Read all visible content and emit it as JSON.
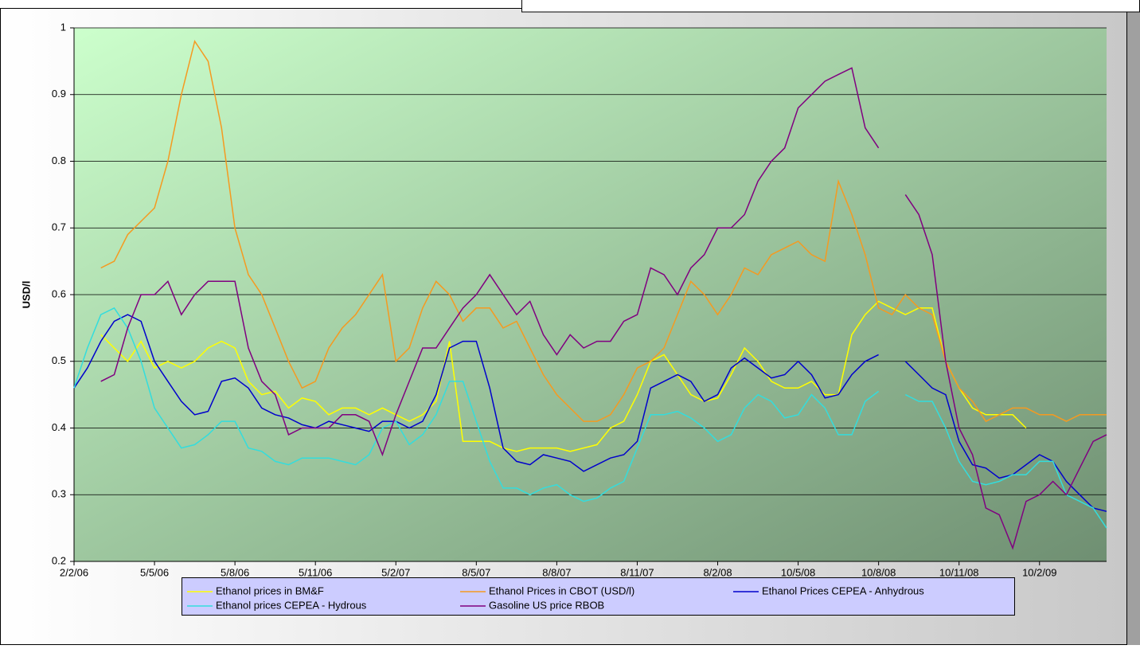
{
  "chart_data": {
    "type": "line",
    "y_label": "USD/l",
    "categories": [
      "2/2/06",
      null,
      null,
      null,
      null,
      null,
      "5/5/06",
      null,
      null,
      null,
      null,
      null,
      "5/8/06",
      null,
      null,
      null,
      null,
      null,
      "5/11/06",
      null,
      null,
      null,
      null,
      null,
      "5/2/07",
      null,
      null,
      null,
      null,
      null,
      "8/5/07",
      null,
      null,
      null,
      null,
      null,
      "8/8/07",
      null,
      null,
      null,
      null,
      null,
      "8/11/07",
      null,
      null,
      null,
      null,
      null,
      "8/2/08",
      null,
      null,
      null,
      null,
      null,
      "10/5/08",
      null,
      null,
      null,
      null,
      null,
      "10/8/08",
      null,
      null,
      null,
      null,
      null,
      "10/11/08",
      null,
      null,
      null,
      null,
      null,
      "10/2/09",
      null,
      null,
      null,
      null,
      null
    ],
    "ylim": [
      0.2,
      1
    ],
    "yticks": [
      0.2,
      0.3,
      0.4,
      0.5,
      0.6,
      0.7,
      0.8,
      0.9,
      1
    ],
    "grid": true,
    "legend": "bottom",
    "series": [
      {
        "name": "Ethanol prices in BM&F",
        "color": "#ffff00",
        "values": [
          null,
          null,
          0.54,
          0.52,
          0.5,
          0.53,
          0.49,
          0.5,
          0.49,
          0.5,
          0.52,
          0.53,
          0.52,
          0.47,
          0.45,
          0.455,
          0.43,
          0.445,
          0.44,
          0.42,
          0.43,
          0.43,
          0.42,
          0.43,
          0.42,
          0.41,
          0.42,
          0.44,
          0.53,
          0.38,
          0.38,
          0.38,
          0.37,
          0.365,
          0.37,
          0.37,
          0.37,
          0.365,
          0.37,
          0.375,
          0.4,
          0.41,
          0.45,
          0.5,
          0.51,
          0.48,
          0.45,
          0.44,
          0.445,
          0.48,
          0.52,
          0.5,
          0.47,
          0.46,
          0.46,
          0.47,
          0.45,
          0.45,
          0.54,
          0.57,
          0.59,
          0.58,
          0.57,
          0.58,
          0.58,
          0.5,
          0.46,
          0.43,
          0.42,
          0.42,
          0.42,
          0.4,
          null,
          null,
          null,
          null,
          null,
          null
        ]
      },
      {
        "name": "Ethanol Prices in CBOT (USD/l)",
        "color": "#f59a20",
        "values": [
          null,
          null,
          0.64,
          0.65,
          0.69,
          0.71,
          0.73,
          0.8,
          0.9,
          0.98,
          0.95,
          0.85,
          0.7,
          0.63,
          0.6,
          0.55,
          0.5,
          0.46,
          0.47,
          0.52,
          0.55,
          0.57,
          0.6,
          0.63,
          0.5,
          0.52,
          0.58,
          0.62,
          0.6,
          0.56,
          0.58,
          0.58,
          0.55,
          0.56,
          0.52,
          0.48,
          0.45,
          0.43,
          0.41,
          0.41,
          0.42,
          0.45,
          0.49,
          0.5,
          0.52,
          0.57,
          0.62,
          0.6,
          0.57,
          0.6,
          0.64,
          0.63,
          0.66,
          0.67,
          0.68,
          0.66,
          0.65,
          0.77,
          0.72,
          0.66,
          0.58,
          0.57,
          0.6,
          0.58,
          0.57,
          0.5,
          0.46,
          0.44,
          0.41,
          0.42,
          0.43,
          0.43,
          0.42,
          0.42,
          0.41,
          0.42,
          0.42,
          0.42
        ]
      },
      {
        "name": "Ethanol Prices CEPEA - Anhydrous",
        "color": "#0000cc",
        "values": [
          0.46,
          0.49,
          0.53,
          0.56,
          0.57,
          0.56,
          0.5,
          0.47,
          0.44,
          0.42,
          0.425,
          0.47,
          0.475,
          0.46,
          0.43,
          0.42,
          0.415,
          0.405,
          0.4,
          0.41,
          0.405,
          0.4,
          0.395,
          0.41,
          0.41,
          0.4,
          0.41,
          0.45,
          0.52,
          0.53,
          0.53,
          0.46,
          0.37,
          0.35,
          0.345,
          0.36,
          0.355,
          0.35,
          0.335,
          0.345,
          0.355,
          0.36,
          0.38,
          0.46,
          0.47,
          0.48,
          0.47,
          0.44,
          0.45,
          0.49,
          0.505,
          0.49,
          0.475,
          0.48,
          0.5,
          0.48,
          0.445,
          0.45,
          0.48,
          0.5,
          0.51,
          null,
          0.5,
          0.48,
          0.46,
          0.45,
          0.38,
          0.345,
          0.34,
          0.325,
          0.33,
          0.345,
          0.36,
          0.35,
          0.32,
          0.3,
          0.28,
          0.275
        ]
      },
      {
        "name": "Ethanol prices CEPEA - Hydrous",
        "color": "#33dddd",
        "values": [
          0.46,
          0.52,
          0.57,
          0.58,
          0.55,
          0.5,
          0.43,
          0.4,
          0.37,
          0.375,
          0.39,
          0.41,
          0.41,
          0.37,
          0.365,
          0.35,
          0.345,
          0.355,
          0.355,
          0.355,
          0.35,
          0.345,
          0.36,
          0.4,
          0.41,
          0.375,
          0.39,
          0.42,
          0.47,
          0.47,
          0.41,
          0.35,
          0.31,
          0.31,
          0.3,
          0.31,
          0.315,
          0.3,
          0.29,
          0.295,
          0.31,
          0.32,
          0.37,
          0.42,
          0.42,
          0.425,
          0.415,
          0.4,
          0.38,
          0.39,
          0.43,
          0.45,
          0.44,
          0.415,
          0.42,
          0.45,
          0.43,
          0.39,
          0.39,
          0.44,
          0.455,
          null,
          0.45,
          0.44,
          0.44,
          0.4,
          0.35,
          0.32,
          0.315,
          0.32,
          0.33,
          0.33,
          0.35,
          0.35,
          0.3,
          0.29,
          0.28,
          0.25
        ]
      },
      {
        "name": "Gasoline US price RBOB",
        "color": "#800080",
        "values": [
          null,
          null,
          0.47,
          0.48,
          0.55,
          0.6,
          0.6,
          0.62,
          0.57,
          0.6,
          0.62,
          0.62,
          0.62,
          0.52,
          0.47,
          0.45,
          0.39,
          0.4,
          0.4,
          0.4,
          0.42,
          0.42,
          0.41,
          0.36,
          0.42,
          0.47,
          0.52,
          0.52,
          0.55,
          0.58,
          0.6,
          0.63,
          0.6,
          0.57,
          0.59,
          0.54,
          0.51,
          0.54,
          0.52,
          0.53,
          0.53,
          0.56,
          0.57,
          0.64,
          0.63,
          0.6,
          0.64,
          0.66,
          0.7,
          0.7,
          0.72,
          0.77,
          0.8,
          0.82,
          0.88,
          0.9,
          0.92,
          0.93,
          0.94,
          0.85,
          0.82,
          null,
          0.75,
          0.72,
          0.66,
          0.5,
          0.4,
          0.36,
          0.28,
          0.27,
          0.22,
          0.29,
          0.3,
          0.32,
          0.3,
          0.34,
          0.38,
          0.39
        ]
      }
    ]
  }
}
